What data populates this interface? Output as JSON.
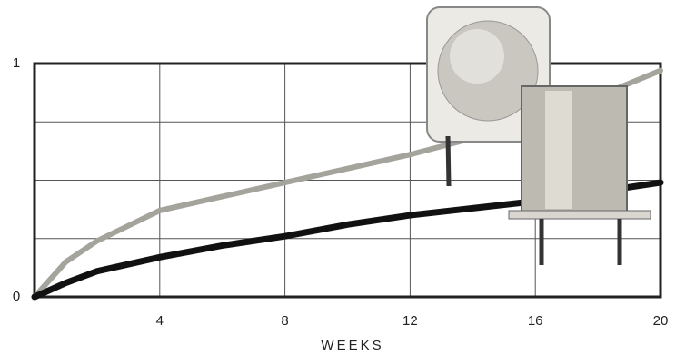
{
  "chart_data": {
    "type": "line",
    "x_label": "WEEKS",
    "x": [
      0,
      1,
      2,
      4,
      6,
      8,
      10,
      12,
      14,
      16,
      18,
      20
    ],
    "series": [
      {
        "color": "#a4a49c",
        "values": [
          0,
          0.15,
          0.24,
          0.37,
          0.43,
          0.49,
          0.55,
          0.61,
          0.68,
          0.76,
          0.86,
          0.97
        ]
      },
      {
        "color": "#111111",
        "values": [
          0,
          0.06,
          0.11,
          0.17,
          0.22,
          0.26,
          0.31,
          0.35,
          0.38,
          0.41,
          0.45,
          0.49
        ]
      }
    ],
    "xlim": [
      0,
      20
    ],
    "xticks": [
      4,
      8,
      12,
      16,
      20
    ],
    "ylim": [
      0,
      1
    ],
    "yticks": [
      0,
      1
    ],
    "y_grid": [
      0.25,
      0.5,
      0.75
    ],
    "grid": true
  }
}
